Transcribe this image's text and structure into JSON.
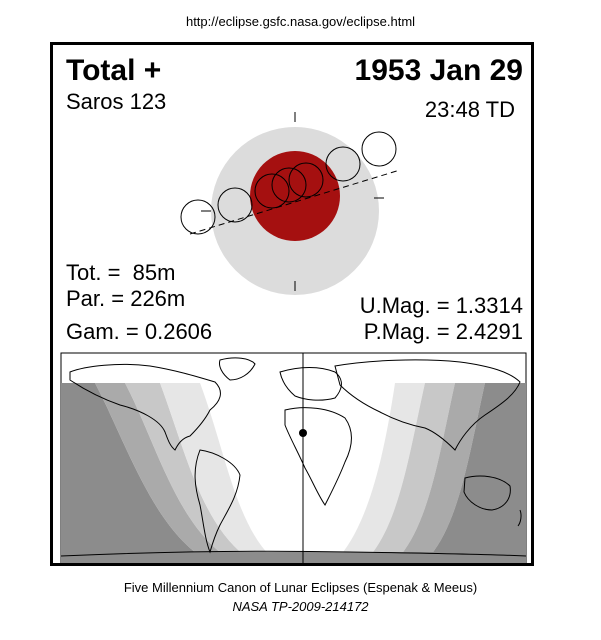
{
  "header": {
    "url": "http://eclipse.gsfc.nasa.gov/eclipse.html"
  },
  "eclipse": {
    "type_label": "Total  +",
    "date": "1953 Jan 29",
    "saros": "Saros 123",
    "time": "23:48 TD",
    "tot": "Tot. =  85m",
    "par": "Par. = 226m",
    "gam": "Gam. = 0.2606",
    "umag": "U.Mag. = 1.3314",
    "pmag": "P.Mag. = 2.4291"
  },
  "colors": {
    "umbra": "#a51010",
    "penumbra": "#dcdcdc",
    "map_ocean": "#ffffff",
    "zone_dark": "#8c8c8c"
  },
  "footer": {
    "line1": "Five Millennium Canon of Lunar Eclipses (Espenak & Meeus)",
    "line2": "NASA TP-2009-214172"
  }
}
